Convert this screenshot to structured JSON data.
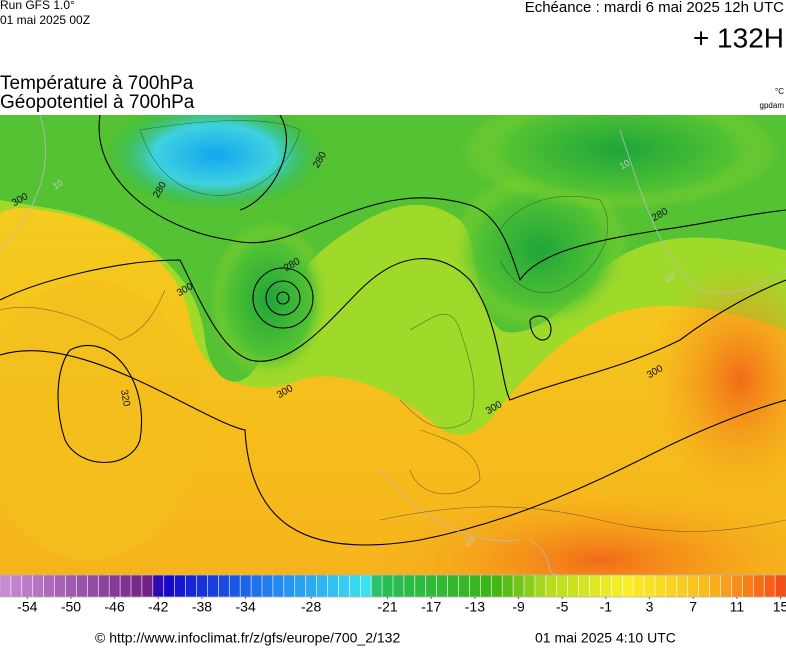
{
  "header": {
    "run": "Run GFS 1.0°",
    "run_date": "01 mai 2025 00Z",
    "forecast_time": "Echéance : mardi 6 mai 2025 12h UTC",
    "lead": "+ 132H",
    "title_1": "Température à 700hPa",
    "title_2": "Géopotentiel à 700hPa",
    "unit_temp": "°C",
    "unit_geo": "gpdam"
  },
  "map": {
    "contour_labels": [
      "300",
      "280",
      "280",
      "300",
      "280",
      "300",
      "320",
      "300",
      "300",
      "280",
      "10",
      "10",
      "10",
      "10"
    ]
  },
  "colorbar": {
    "range": [
      -56,
      16
    ],
    "ticks": [
      -54,
      -50,
      -46,
      -42,
      -38,
      -34,
      -28,
      -21,
      -17,
      -13,
      -9,
      -5,
      -1,
      3,
      7,
      11,
      15
    ]
  },
  "footer": {
    "url": "© http://www.infoclimat.fr/z/gfs/europe/700_2/132",
    "generated": "01 mai 2025  4:10 UTC"
  }
}
